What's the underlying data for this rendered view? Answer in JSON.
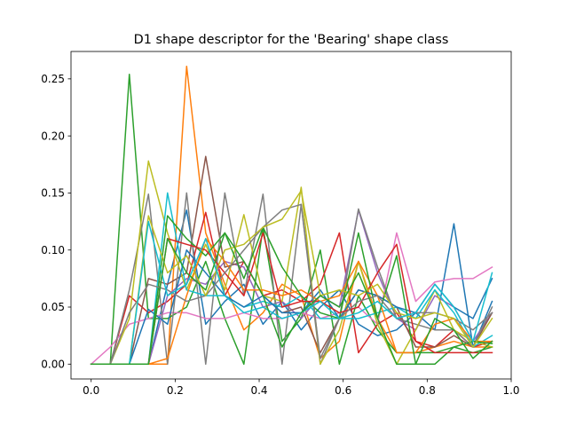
{
  "chart_data": {
    "type": "line",
    "title": "D1 shape descriptor for the 'Bearing' shape class",
    "xlabel": "",
    "ylabel": "",
    "xlim": [
      -0.048,
      1.0
    ],
    "ylim": [
      -0.013,
      0.274
    ],
    "xticks": [
      0.0,
      0.2,
      0.4,
      0.6,
      0.8,
      1.0
    ],
    "xtick_labels": [
      "0.0",
      "0.2",
      "0.4",
      "0.6",
      "0.8",
      "1.0"
    ],
    "yticks": [
      0.0,
      0.05,
      0.1,
      0.15,
      0.2,
      0.25
    ],
    "ytick_labels": [
      "0.00",
      "0.05",
      "0.10",
      "0.15",
      "0.20",
      "0.25"
    ],
    "grid": false,
    "x": [
      0.0,
      0.0455,
      0.0909,
      0.1364,
      0.1818,
      0.2273,
      0.2727,
      0.3182,
      0.3636,
      0.4091,
      0.4545,
      0.5,
      0.5455,
      0.5909,
      0.6364,
      0.6818,
      0.7273,
      0.7727,
      0.8182,
      0.8636,
      0.9091,
      0.9545
    ],
    "series": [
      {
        "color": "#1f77b4",
        "values": [
          0,
          0,
          0,
          0,
          0.07,
          0.135,
          0.035,
          0.055,
          0.07,
          0.035,
          0.055,
          0.03,
          0.05,
          0.065,
          0.035,
          0.025,
          0.03,
          0.045,
          0.03,
          0.123,
          0.015,
          0.055
        ]
      },
      {
        "color": "#ff7f0e",
        "values": [
          0,
          0,
          0,
          0,
          0,
          0.261,
          0.115,
          0.07,
          0.03,
          0.045,
          0.07,
          0.06,
          0.005,
          0.02,
          0.09,
          0.04,
          0.01,
          0.01,
          0.015,
          0.02,
          0.015,
          0.015
        ]
      },
      {
        "color": "#2ca02c",
        "values": [
          0,
          0,
          0.254,
          0.04,
          0.04,
          0.05,
          0.09,
          0.04,
          0,
          0.12,
          0.02,
          0.04,
          0.1,
          0,
          0.06,
          0.03,
          0.01,
          0.01,
          0.01,
          0.015,
          0.01,
          0.015
        ]
      },
      {
        "color": "#d62728",
        "values": [
          0,
          0,
          0.06,
          0.045,
          0.055,
          0.07,
          0.133,
          0.06,
          0.09,
          0.06,
          0.065,
          0.055,
          0.07,
          0.115,
          0.01,
          0.035,
          0.045,
          0.02,
          0.015,
          0.03,
          0.015,
          0.02
        ]
      },
      {
        "color": "#9467bd",
        "values": [
          0,
          0,
          0,
          0,
          0.06,
          0.075,
          0.07,
          0.09,
          0.085,
          0.05,
          0.055,
          0.04,
          0.06,
          0.05,
          0.135,
          0.08,
          0.04,
          0.03,
          0.06,
          0.05,
          0.02,
          0.045
        ]
      },
      {
        "color": "#8c564b",
        "values": [
          0,
          0,
          0,
          0.075,
          0.07,
          0.08,
          0.182,
          0.085,
          0.09,
          0.06,
          0.045,
          0.05,
          0.01,
          0.04,
          0.065,
          0.06,
          0.05,
          0.015,
          0.015,
          0.025,
          0.015,
          0.045
        ]
      },
      {
        "color": "#e377c2",
        "values": [
          0,
          0.015,
          0.035,
          0.04,
          0.045,
          0.045,
          0.04,
          0.04,
          0.045,
          0.04,
          0.04,
          0.045,
          0.04,
          0.045,
          0.05,
          0.035,
          0.115,
          0.055,
          0.072,
          0.075,
          0.075,
          0.085
        ]
      },
      {
        "color": "#7f7f7f",
        "values": [
          0,
          0,
          0.065,
          0.149,
          0,
          0.15,
          0,
          0.15,
          0.06,
          0.149,
          0,
          0.14,
          0,
          0.04,
          0.136,
          0.085,
          0.04,
          0.035,
          0.03,
          0.03,
          0.015,
          0.05
        ]
      },
      {
        "color": "#bcbd22",
        "values": [
          0,
          0,
          0.04,
          0.178,
          0.115,
          0.065,
          0.105,
          0.065,
          0.131,
          0.06,
          0.055,
          0.155,
          0,
          0.03,
          0.09,
          0.035,
          0,
          0.03,
          0.065,
          0.03,
          0.02,
          0.015
        ]
      },
      {
        "color": "#17becf",
        "values": [
          0,
          0,
          0,
          0,
          0.15,
          0.065,
          0.06,
          0.06,
          0.05,
          0.055,
          0.05,
          0.06,
          0.04,
          0.04,
          0.04,
          0.045,
          0.05,
          0.04,
          0.065,
          0.045,
          0.015,
          0.025
        ]
      },
      {
        "color": "#1f77b4",
        "values": [
          0,
          0,
          0,
          0.048,
          0.035,
          0.1,
          0.08,
          0.06,
          0.05,
          0.06,
          0.045,
          0.045,
          0.065,
          0.04,
          0.065,
          0.06,
          0.05,
          0.045,
          0.07,
          0.05,
          0.04,
          0.075
        ]
      },
      {
        "color": "#ff7f0e",
        "values": [
          0,
          0,
          0,
          0,
          0.005,
          0.06,
          0.11,
          0.09,
          0.065,
          0.065,
          0.06,
          0.065,
          0.055,
          0.06,
          0.09,
          0.06,
          0.01,
          0.01,
          0.035,
          0.04,
          0.02,
          0.02
        ]
      },
      {
        "color": "#2ca02c",
        "values": [
          0,
          0,
          0,
          0,
          0.13,
          0.11,
          0.095,
          0.115,
          0.075,
          0.12,
          0.085,
          0.06,
          0.045,
          0.04,
          0.115,
          0.04,
          0.095,
          0.0,
          0.0,
          0.015,
          0.02,
          0.018
        ]
      },
      {
        "color": "#d62728",
        "values": [
          0,
          0,
          0,
          0,
          0.11,
          0.105,
          0.1,
          0.08,
          0.06,
          0.115,
          0.05,
          0.055,
          0.055,
          0.045,
          0.05,
          0.08,
          0.105,
          0.02,
          0.01,
          0.01,
          0.01,
          0.01
        ]
      },
      {
        "color": "#7f7f7f",
        "values": [
          0,
          0,
          0.045,
          0.07,
          0.065,
          0.055,
          0.06,
          0.08,
          0.1,
          0.12,
          0.135,
          0.14,
          0.005,
          0.04,
          0.055,
          0.06,
          0.04,
          0.045,
          0.045,
          0.04,
          0.03,
          0.045
        ]
      },
      {
        "color": "#bcbd22",
        "values": [
          0,
          0,
          0,
          0.13,
          0.08,
          0.095,
          0.06,
          0.1,
          0.105,
          0.12,
          0.127,
          0.152,
          0.06,
          0.065,
          0.06,
          0.07,
          0.045,
          0.04,
          0.045,
          0.04,
          0.015,
          0.04
        ]
      },
      {
        "color": "#17becf",
        "values": [
          0,
          0,
          0,
          0.125,
          0.06,
          0.07,
          0.11,
          0.06,
          0.045,
          0.05,
          0.04,
          0.045,
          0.055,
          0.04,
          0.045,
          0.055,
          0.04,
          0.045,
          0.07,
          0.05,
          0.02,
          0.08
        ]
      },
      {
        "color": "#2ca02c",
        "values": [
          0,
          0,
          0,
          0,
          0.11,
          0.08,
          0.065,
          0.115,
          0.09,
          0.06,
          0.015,
          0.045,
          0.06,
          0.05,
          0.08,
          0.04,
          0,
          0.0,
          0.04,
          0.03,
          0.005,
          0.02
        ]
      }
    ]
  }
}
